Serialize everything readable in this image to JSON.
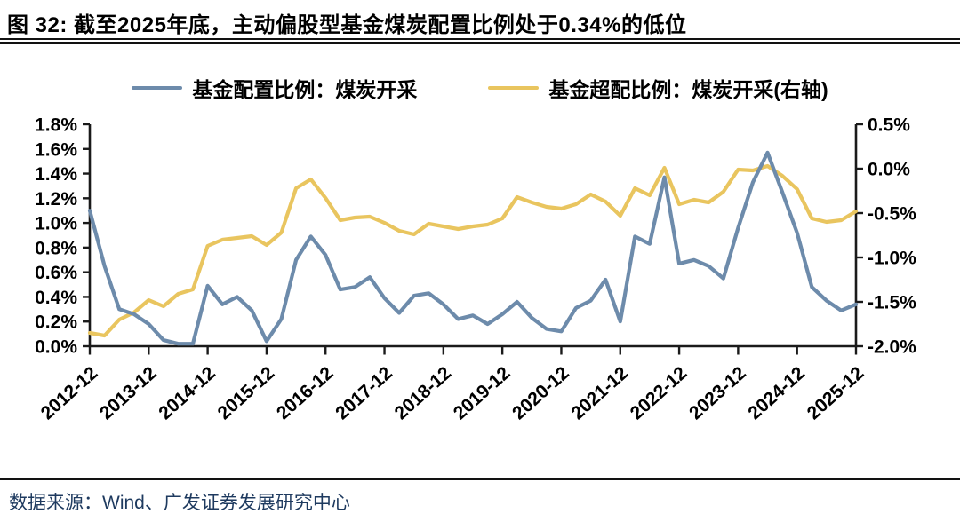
{
  "figure": {
    "title": "图 32: 截至2025年底，主动偏股型基金煤炭配置比例处于0.34%的低位",
    "source": "数据来源：Wind、广发证券发展研究中心"
  },
  "colors": {
    "allocation_line": "#6d8bab",
    "overweight_line": "#e9c55f",
    "axis": "#1a1a1a",
    "tick_text": "#000000",
    "source_text": "#1e3a5f",
    "rule": "#121212"
  },
  "legend": [
    {
      "label": "基金配置比例：煤炭开采"
    },
    {
      "label": "基金超配比例：煤炭开采(右轴)"
    }
  ],
  "chart_data": {
    "type": "line",
    "title": "主动偏股型基金煤炭配置比例与超配比例",
    "grid": false,
    "legend_position": "top-center",
    "categories": [
      "2012-12",
      "2013-03",
      "2013-06",
      "2013-09",
      "2013-12",
      "2014-03",
      "2014-06",
      "2014-09",
      "2014-12",
      "2015-03",
      "2015-06",
      "2015-09",
      "2015-12",
      "2016-03",
      "2016-06",
      "2016-09",
      "2016-12",
      "2017-03",
      "2017-06",
      "2017-09",
      "2017-12",
      "2018-03",
      "2018-06",
      "2018-09",
      "2018-12",
      "2019-03",
      "2019-06",
      "2019-09",
      "2019-12",
      "2020-03",
      "2020-06",
      "2020-09",
      "2020-12",
      "2021-03",
      "2021-06",
      "2021-09",
      "2021-12",
      "2022-03",
      "2022-06",
      "2022-09",
      "2022-12",
      "2023-03",
      "2023-06",
      "2023-09",
      "2023-12",
      "2024-03",
      "2024-06",
      "2024-09",
      "2024-12",
      "2025-03",
      "2025-06",
      "2025-09",
      "2025-12"
    ],
    "series": [
      {
        "name": "基金配置比例：煤炭开采",
        "axis": "left",
        "color": "#6d8bab",
        "values": [
          1.1,
          0.65,
          0.3,
          0.26,
          0.18,
          0.05,
          0.02,
          0.02,
          0.49,
          0.34,
          0.4,
          0.29,
          0.04,
          0.22,
          0.7,
          0.89,
          0.74,
          0.46,
          0.48,
          0.56,
          0.39,
          0.27,
          0.41,
          0.43,
          0.34,
          0.22,
          0.25,
          0.18,
          0.26,
          0.36,
          0.23,
          0.14,
          0.12,
          0.31,
          0.37,
          0.54,
          0.2,
          0.89,
          0.83,
          1.37,
          0.67,
          0.7,
          0.65,
          0.55,
          0.96,
          1.33,
          1.57,
          1.25,
          0.92,
          0.48,
          0.37,
          0.29,
          0.34
        ]
      },
      {
        "name": "基金超配比例：煤炭开采(右轴)",
        "axis": "right",
        "color": "#e9c55f",
        "values": [
          -1.85,
          -1.88,
          -1.7,
          -1.62,
          -1.48,
          -1.55,
          -1.41,
          -1.36,
          -0.87,
          -0.8,
          -0.78,
          -0.76,
          -0.86,
          -0.72,
          -0.22,
          -0.12,
          -0.33,
          -0.58,
          -0.55,
          -0.54,
          -0.61,
          -0.7,
          -0.74,
          -0.62,
          -0.65,
          -0.68,
          -0.65,
          -0.63,
          -0.56,
          -0.32,
          -0.38,
          -0.43,
          -0.45,
          -0.4,
          -0.29,
          -0.37,
          -0.53,
          -0.22,
          -0.3,
          0.01,
          -0.4,
          -0.35,
          -0.38,
          -0.26,
          -0.01,
          -0.02,
          0.03,
          -0.08,
          -0.23,
          -0.56,
          -0.6,
          -0.58,
          -0.48
        ]
      }
    ],
    "left_axis": {
      "min": 0.0,
      "max": 1.8,
      "ticks": [
        "1.8%",
        "1.6%",
        "1.4%",
        "1.2%",
        "1.0%",
        "0.8%",
        "0.6%",
        "0.4%",
        "0.2%",
        "0.0%"
      ]
    },
    "right_axis": {
      "min": -2.0,
      "max": 0.5,
      "ticks": [
        "0.5%",
        "0.0%",
        "-0.5%",
        "-1.0%",
        "-1.5%",
        "-2.0%"
      ]
    },
    "x_tick_labels": [
      "2012-12",
      "2013-12",
      "2014-12",
      "2015-12",
      "2016-12",
      "2017-12",
      "2018-12",
      "2019-12",
      "2020-12",
      "2021-12",
      "2022-12",
      "2023-12",
      "2024-12",
      "2025-12"
    ]
  }
}
